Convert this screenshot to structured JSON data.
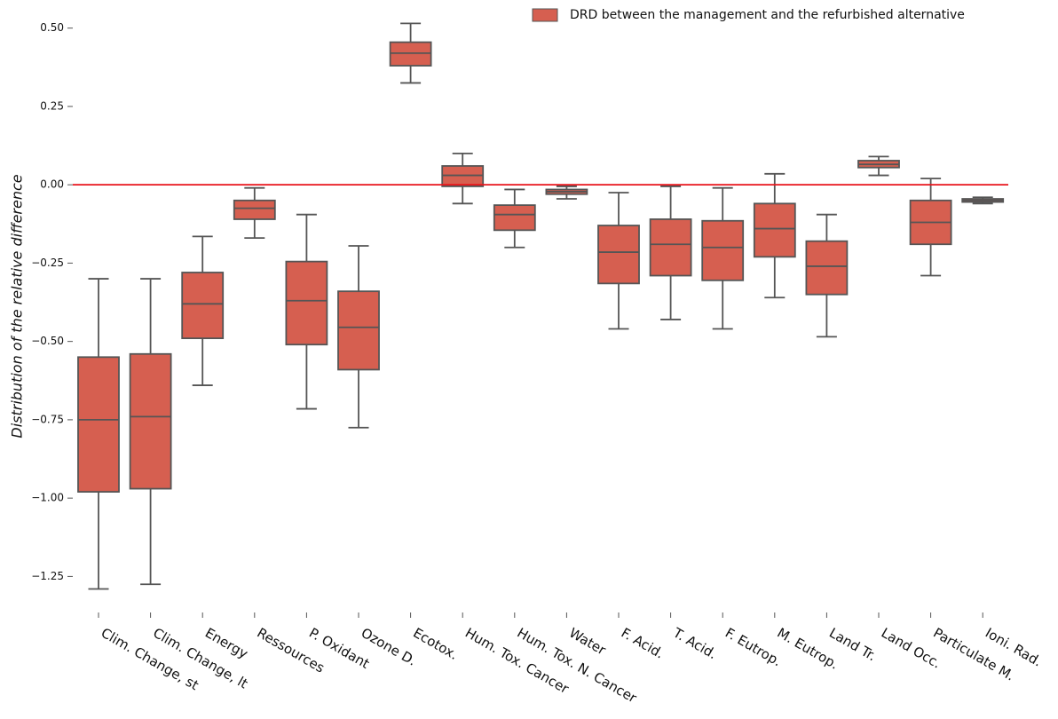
{
  "chart_data": {
    "type": "box",
    "y_label": "Distribution of the relative difference",
    "categories": [
      "Clim. Change, st",
      "Clim. Change, lt",
      "Energy",
      "Ressources",
      "P. Oxidant",
      "Ozone D.",
      "Ecotox.",
      "Hum. Tox. Cancer",
      "Hum. Tox. N. Cancer",
      "Water",
      "F. Acid.",
      "T. Acid.",
      "F. Eutrop.",
      "M. Eutrop.",
      "Land Tr.",
      "Land Occ.",
      "Particulate M.",
      "Ioni. Rad."
    ],
    "series": [
      {
        "name": "DRD between the management and the refurbished alternative",
        "color": "#d65f50",
        "min": [
          -1.29,
          -1.275,
          -0.64,
          -0.17,
          -0.715,
          -0.775,
          0.325,
          -0.06,
          -0.2,
          -0.045,
          -0.46,
          -0.43,
          -0.46,
          -0.36,
          -0.485,
          0.03,
          -0.29,
          -0.06
        ],
        "q1": [
          -0.98,
          -0.97,
          -0.49,
          -0.11,
          -0.51,
          -0.59,
          0.38,
          -0.005,
          -0.145,
          -0.03,
          -0.315,
          -0.29,
          -0.305,
          -0.23,
          -0.35,
          0.055,
          -0.19,
          -0.055
        ],
        "median": [
          -0.75,
          -0.74,
          -0.38,
          -0.075,
          -0.37,
          -0.455,
          0.42,
          0.03,
          -0.095,
          -0.022,
          -0.215,
          -0.19,
          -0.2,
          -0.14,
          -0.26,
          0.065,
          -0.12,
          -0.05
        ],
        "q3": [
          -0.55,
          -0.54,
          -0.28,
          -0.05,
          -0.245,
          -0.34,
          0.455,
          0.06,
          -0.065,
          -0.015,
          -0.13,
          -0.11,
          -0.115,
          -0.06,
          -0.18,
          0.077,
          -0.05,
          -0.045
        ],
        "max": [
          -0.3,
          -0.3,
          -0.165,
          -0.01,
          -0.095,
          -0.195,
          0.515,
          0.1,
          -0.015,
          -0.005,
          -0.025,
          -0.005,
          -0.01,
          0.035,
          -0.095,
          0.09,
          0.02,
          -0.04
        ]
      }
    ],
    "reference_line": {
      "value": 0,
      "color": "#e8141b"
    },
    "ylim": [
      -1.35,
      0.55
    ],
    "yticks": [
      {
        "value": 0.5,
        "label": "0.50"
      },
      {
        "value": 0.25,
        "label": "0.25"
      },
      {
        "value": 0,
        "label": "0.00"
      },
      {
        "value": -0.25,
        "label": "−0.25"
      },
      {
        "value": -0.5,
        "label": "−0.50"
      },
      {
        "value": -0.75,
        "label": "−0.75"
      },
      {
        "value": -1,
        "label": "−1.00"
      },
      {
        "value": -1.25,
        "label": "−1.25"
      }
    ],
    "legend": "upper right",
    "grid": false
  }
}
